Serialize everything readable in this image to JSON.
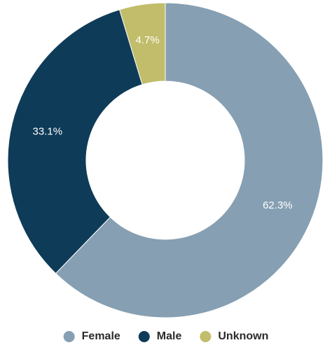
{
  "chart_data": {
    "type": "pie",
    "variant": "donut",
    "title": "",
    "categories": [
      "Female",
      "Male",
      "Unknown"
    ],
    "values": [
      62.3,
      33.1,
      4.7
    ],
    "value_labels": [
      "62.3%",
      "33.1%",
      "4.7%"
    ],
    "colors": [
      "#869fb2",
      "#0e3b58",
      "#c1bd6a"
    ],
    "start_angle": "12 o'clock",
    "direction": "clockwise",
    "legend": {
      "position": "bottom-center",
      "items": [
        {
          "label": "Female",
          "color": "#869fb2"
        },
        {
          "label": "Male",
          "color": "#0e3b58"
        },
        {
          "label": "Unknown",
          "color": "#c1bd6a"
        }
      ]
    }
  }
}
